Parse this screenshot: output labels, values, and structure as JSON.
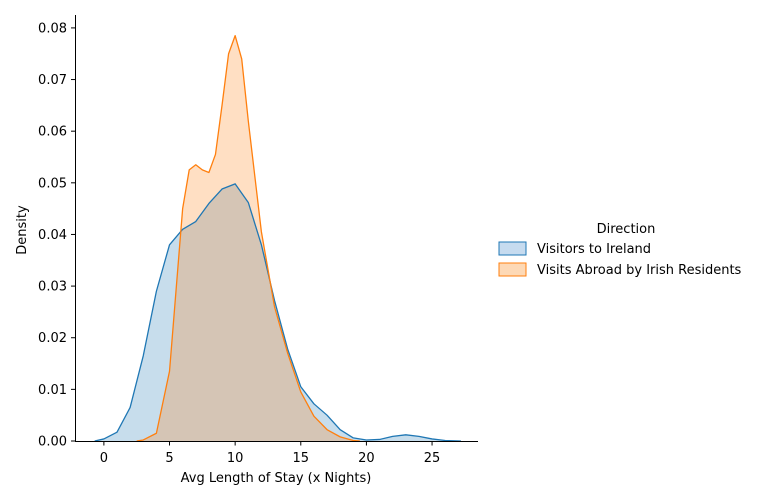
{
  "chart_data": {
    "type": "area",
    "xlabel": "Avg Length of Stay (x Nights)",
    "ylabel": "Density",
    "xlim": [
      -2.2,
      28.5
    ],
    "ylim": [
      0,
      0.0825
    ],
    "xticks": [
      0,
      5,
      10,
      15,
      20,
      25
    ],
    "yticks": [
      "0.00",
      "0.01",
      "0.02",
      "0.03",
      "0.04",
      "0.05",
      "0.06",
      "0.07",
      "0.08"
    ],
    "grid": false,
    "legend": {
      "title": "Direction",
      "position": "right"
    },
    "series": [
      {
        "name": "Visitors to Ireland",
        "color": "#1f77b4",
        "fill": "#c6dbef",
        "points": [
          [
            -0.7,
            0.0
          ],
          [
            0.0,
            0.0004
          ],
          [
            1.0,
            0.0017
          ],
          [
            2.0,
            0.0065
          ],
          [
            3.0,
            0.0165
          ],
          [
            4.0,
            0.029
          ],
          [
            5.0,
            0.038
          ],
          [
            6.0,
            0.041
          ],
          [
            7.0,
            0.0425
          ],
          [
            8.0,
            0.046
          ],
          [
            9.0,
            0.0488
          ],
          [
            10.0,
            0.0498
          ],
          [
            11.0,
            0.0462
          ],
          [
            12.0,
            0.038
          ],
          [
            13.0,
            0.0272
          ],
          [
            14.0,
            0.0178
          ],
          [
            15.0,
            0.0105
          ],
          [
            16.0,
            0.0072
          ],
          [
            17.0,
            0.005
          ],
          [
            18.0,
            0.0022
          ],
          [
            19.0,
            0.0006
          ],
          [
            20.0,
            0.0002
          ],
          [
            21.0,
            0.0003
          ],
          [
            22.0,
            0.0009
          ],
          [
            23.0,
            0.0012
          ],
          [
            24.0,
            0.0009
          ],
          [
            25.0,
            0.0004
          ],
          [
            26.0,
            0.0001
          ],
          [
            27.2,
            0.0
          ]
        ]
      },
      {
        "name": "Visits Abroad by Irish Residents",
        "color": "#ff7f0e",
        "fill": "#fdd9b6",
        "points": [
          [
            2.5,
            0.0
          ],
          [
            3.0,
            0.0002
          ],
          [
            4.0,
            0.0015
          ],
          [
            5.0,
            0.0135
          ],
          [
            6.0,
            0.045
          ],
          [
            6.5,
            0.0525
          ],
          [
            7.0,
            0.0535
          ],
          [
            7.5,
            0.0525
          ],
          [
            8.0,
            0.052
          ],
          [
            8.5,
            0.0555
          ],
          [
            9.0,
            0.065
          ],
          [
            9.5,
            0.075
          ],
          [
            10.0,
            0.0785
          ],
          [
            10.5,
            0.074
          ],
          [
            11.0,
            0.062
          ],
          [
            12.0,
            0.0405
          ],
          [
            13.0,
            0.026
          ],
          [
            14.0,
            0.017
          ],
          [
            15.0,
            0.0095
          ],
          [
            16.0,
            0.0048
          ],
          [
            17.0,
            0.0022
          ],
          [
            18.0,
            0.0008
          ],
          [
            19.0,
            0.0001
          ],
          [
            19.5,
            0.0
          ]
        ]
      }
    ]
  }
}
